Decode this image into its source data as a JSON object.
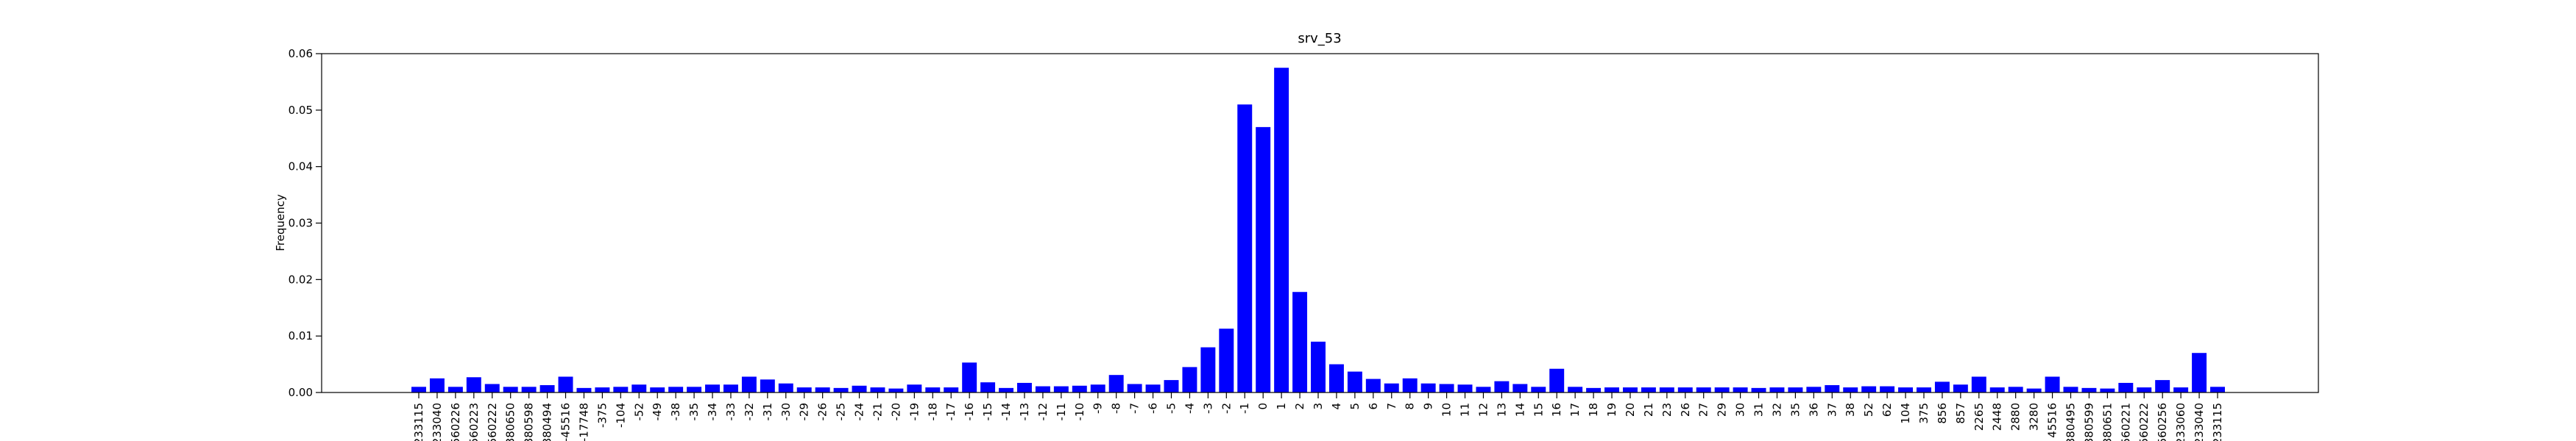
{
  "chart_data": {
    "type": "bar",
    "title": "srv_53",
    "y_label": "Frequency",
    "color": "#0000ff",
    "categories": [
      "-233115",
      "-233040",
      "-560226",
      "-560223",
      "-560222",
      "-380650",
      "-380598",
      "-380494",
      "-45516",
      "-17748",
      "-375",
      "-104",
      "-52",
      "-49",
      "-38",
      "-35",
      "-34",
      "-33",
      "-32",
      "-31",
      "-30",
      "-29",
      "-26",
      "-25",
      "-24",
      "-21",
      "-20",
      "-19",
      "-18",
      "-17",
      "-16",
      "-15",
      "-14",
      "-13",
      "-12",
      "-11",
      "-10",
      "-9",
      "-8",
      "-7",
      "-6",
      "-5",
      "-4",
      "-3",
      "-2",
      "-1",
      "0",
      "1",
      "2",
      "3",
      "4",
      "5",
      "6",
      "7",
      "8",
      "9",
      "10",
      "11",
      "12",
      "13",
      "14",
      "15",
      "16",
      "17",
      "18",
      "19",
      "20",
      "21",
      "23",
      "26",
      "27",
      "29",
      "30",
      "31",
      "32",
      "35",
      "36",
      "37",
      "38",
      "52",
      "62",
      "104",
      "375",
      "856",
      "857",
      "2265",
      "2448",
      "2880",
      "3280",
      "45516",
      "380495",
      "380599",
      "380651",
      "560221",
      "560222",
      "560256",
      "233060",
      "233040",
      "233115"
    ],
    "values": [
      0.001,
      0.0025,
      0.001,
      0.0027,
      0.0015,
      0.001,
      0.001,
      0.0013,
      0.0028,
      0.0008,
      0.0009,
      0.001,
      0.0014,
      0.0009,
      0.001,
      0.001,
      0.0014,
      0.0014,
      0.0028,
      0.0023,
      0.0016,
      0.0009,
      0.0009,
      0.0008,
      0.0012,
      0.0009,
      0.0007,
      0.0014,
      0.0009,
      0.0009,
      0.0053,
      0.0018,
      0.0008,
      0.0017,
      0.0011,
      0.0011,
      0.0012,
      0.0014,
      0.0031,
      0.0015,
      0.0014,
      0.0022,
      0.0045,
      0.008,
      0.0113,
      0.051,
      0.047,
      0.0575,
      0.0178,
      0.009,
      0.005,
      0.0037,
      0.0024,
      0.0016,
      0.0025,
      0.0016,
      0.0015,
      0.0014,
      0.001,
      0.002,
      0.0015,
      0.001,
      0.0042,
      0.001,
      0.0008,
      0.0009,
      0.0009,
      0.0009,
      0.0009,
      0.0009,
      0.0009,
      0.0009,
      0.0009,
      0.0008,
      0.0009,
      0.0009,
      0.001,
      0.0013,
      0.0009,
      0.0011,
      0.0011,
      0.0009,
      0.0009,
      0.0019,
      0.0014,
      0.0028,
      0.0009,
      0.001,
      0.0007,
      0.0028,
      0.001,
      0.0008,
      0.0007,
      0.0017,
      0.0009,
      0.0022,
      0.0009,
      0.007,
      0.001
    ],
    "ylim": [
      0,
      0.06
    ],
    "yticks": [
      {
        "value": 0,
        "label": "0.00"
      },
      0.01,
      0.02,
      0.03,
      0.04,
      0.05,
      0.06
    ]
  }
}
